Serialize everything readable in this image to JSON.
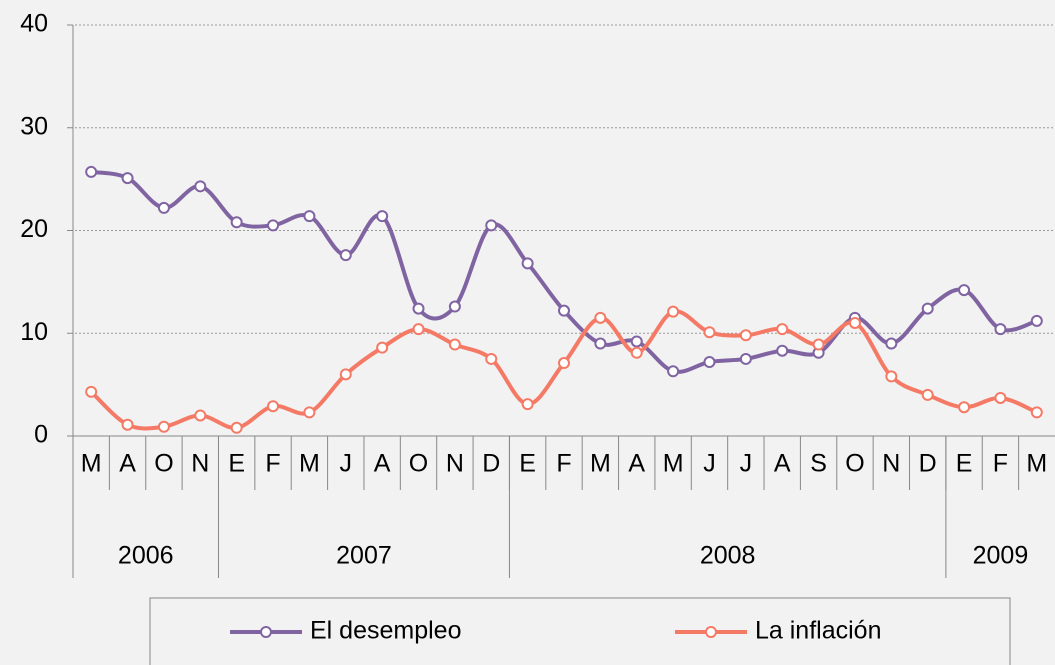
{
  "chart_data": {
    "type": "line",
    "categories": [
      "M",
      "A",
      "O",
      "N",
      "E",
      "F",
      "M",
      "J",
      "A",
      "O",
      "N",
      "D",
      "E",
      "F",
      "M",
      "A",
      "M",
      "J",
      "J",
      "A",
      "S",
      "O",
      "N",
      "D",
      "E",
      "F",
      "M"
    ],
    "x_groups": [
      {
        "label": "2006",
        "size": 4
      },
      {
        "label": "2007",
        "size": 8
      },
      {
        "label": "2008",
        "size": 12
      },
      {
        "label": "2009",
        "size": 3
      }
    ],
    "series": [
      {
        "name": "El desempleo",
        "color": "#8064a2",
        "values": [
          25.7,
          25.1,
          22.2,
          24.3,
          20.8,
          20.5,
          21.4,
          17.6,
          21.4,
          12.4,
          12.6,
          20.5,
          16.8,
          12.2,
          9.0,
          9.2,
          6.3,
          7.2,
          7.5,
          8.3,
          8.1,
          11.5,
          9.0,
          12.4,
          14.2,
          10.4,
          11.2
        ]
      },
      {
        "name": "La inflación",
        "color": "#f47a66",
        "values": [
          4.3,
          1.1,
          0.9,
          2.0,
          0.8,
          2.9,
          2.3,
          6.0,
          8.6,
          10.4,
          8.9,
          7.5,
          3.1,
          7.1,
          11.5,
          8.1,
          12.1,
          10.1,
          9.8,
          10.4,
          8.9,
          11.0,
          5.8,
          4.0,
          2.8,
          3.7,
          2.3
        ]
      }
    ],
    "ylim": [
      0,
      40
    ],
    "yticks": [
      0,
      10,
      20,
      30,
      40
    ],
    "grid": true,
    "legend": "bottom"
  }
}
